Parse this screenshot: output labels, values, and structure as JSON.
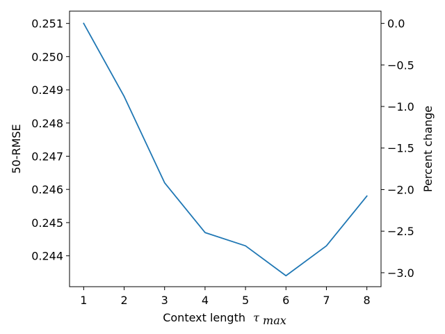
{
  "chart_data": {
    "type": "line",
    "title": "",
    "xlabel": "Context length",
    "xlabel_symbol": "τ",
    "xlabel_subscript": "max",
    "ylabel": "50-RMSE",
    "ylabel_right": "Percent change",
    "x": [
      1,
      2,
      3,
      4,
      5,
      6,
      7,
      8
    ],
    "series": [
      {
        "values": [
          0.251,
          0.2488,
          0.2462,
          0.2447,
          0.2443,
          0.2434,
          0.2443,
          0.2458
        ],
        "color": "#1f77b4"
      }
    ],
    "xlim": [
      0.65,
      8.35
    ],
    "ylim": [
      0.24307,
      0.25137
    ],
    "ylim_right": [
      -3.168,
      0.147
    ],
    "xticks": [
      "1",
      "2",
      "3",
      "4",
      "5",
      "6",
      "7",
      "8"
    ],
    "yticks": [
      "0.244",
      "0.245",
      "0.246",
      "0.247",
      "0.248",
      "0.249",
      "0.250",
      "0.251"
    ],
    "yticks_right": [
      "0.0",
      "−0.5",
      "−1.0",
      "−1.5",
      "−2.0",
      "−2.5",
      "−3.0"
    ],
    "grid": false,
    "legend": "none"
  }
}
